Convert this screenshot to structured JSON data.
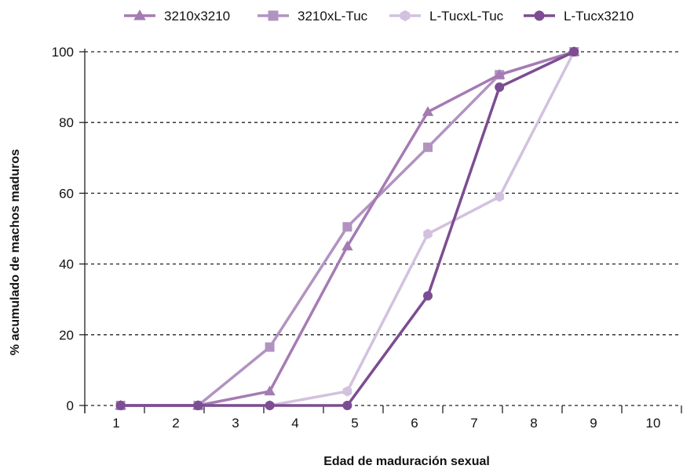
{
  "chart_data": {
    "type": "line",
    "title": "",
    "xlabel": "Edad de maduración sexual",
    "ylabel": "% acumulado de machos maduros",
    "x_ticks": [
      "1",
      "2",
      "3",
      "4",
      "5",
      "6",
      "7",
      "8",
      "9",
      "10"
    ],
    "y_ticks": [
      "0",
      "20",
      "40",
      "60",
      "80",
      "100"
    ],
    "xlim": [
      0.5,
      10.5
    ],
    "ylim": [
      0,
      100
    ],
    "grid": "horizontal dashed",
    "legend_position": "top",
    "series": [
      {
        "name": "3210x3210",
        "marker": "triangle",
        "color": "#a57bb3",
        "points": [
          [
            1.1,
            0
          ],
          [
            2.4,
            0
          ],
          [
            3.6,
            4
          ],
          [
            4.9,
            45
          ],
          [
            6.25,
            83
          ],
          [
            7.45,
            93.5
          ],
          [
            8.7,
            100
          ]
        ]
      },
      {
        "name": "3210xL-Tuc",
        "marker": "square",
        "color": "#b293c0",
        "points": [
          [
            1.1,
            0
          ],
          [
            2.4,
            0
          ],
          [
            3.6,
            16.5
          ],
          [
            4.9,
            50.5
          ],
          [
            6.25,
            73
          ],
          [
            7.45,
            93.5
          ],
          [
            8.7,
            100
          ]
        ]
      },
      {
        "name": "L-TucxL-Tuc",
        "marker": "hexagon",
        "color": "#d3c1df",
        "points": [
          [
            1.1,
            0
          ],
          [
            2.4,
            0
          ],
          [
            3.6,
            0
          ],
          [
            4.9,
            4
          ],
          [
            6.25,
            48.5
          ],
          [
            7.45,
            59
          ],
          [
            8.7,
            100
          ]
        ]
      },
      {
        "name": "L-Tucx3210",
        "marker": "circle",
        "color": "#7c4d92",
        "points": [
          [
            1.1,
            0
          ],
          [
            2.4,
            0
          ],
          [
            3.6,
            0
          ],
          [
            4.9,
            0
          ],
          [
            6.25,
            31
          ],
          [
            7.45,
            90
          ],
          [
            8.7,
            100
          ]
        ]
      }
    ]
  }
}
